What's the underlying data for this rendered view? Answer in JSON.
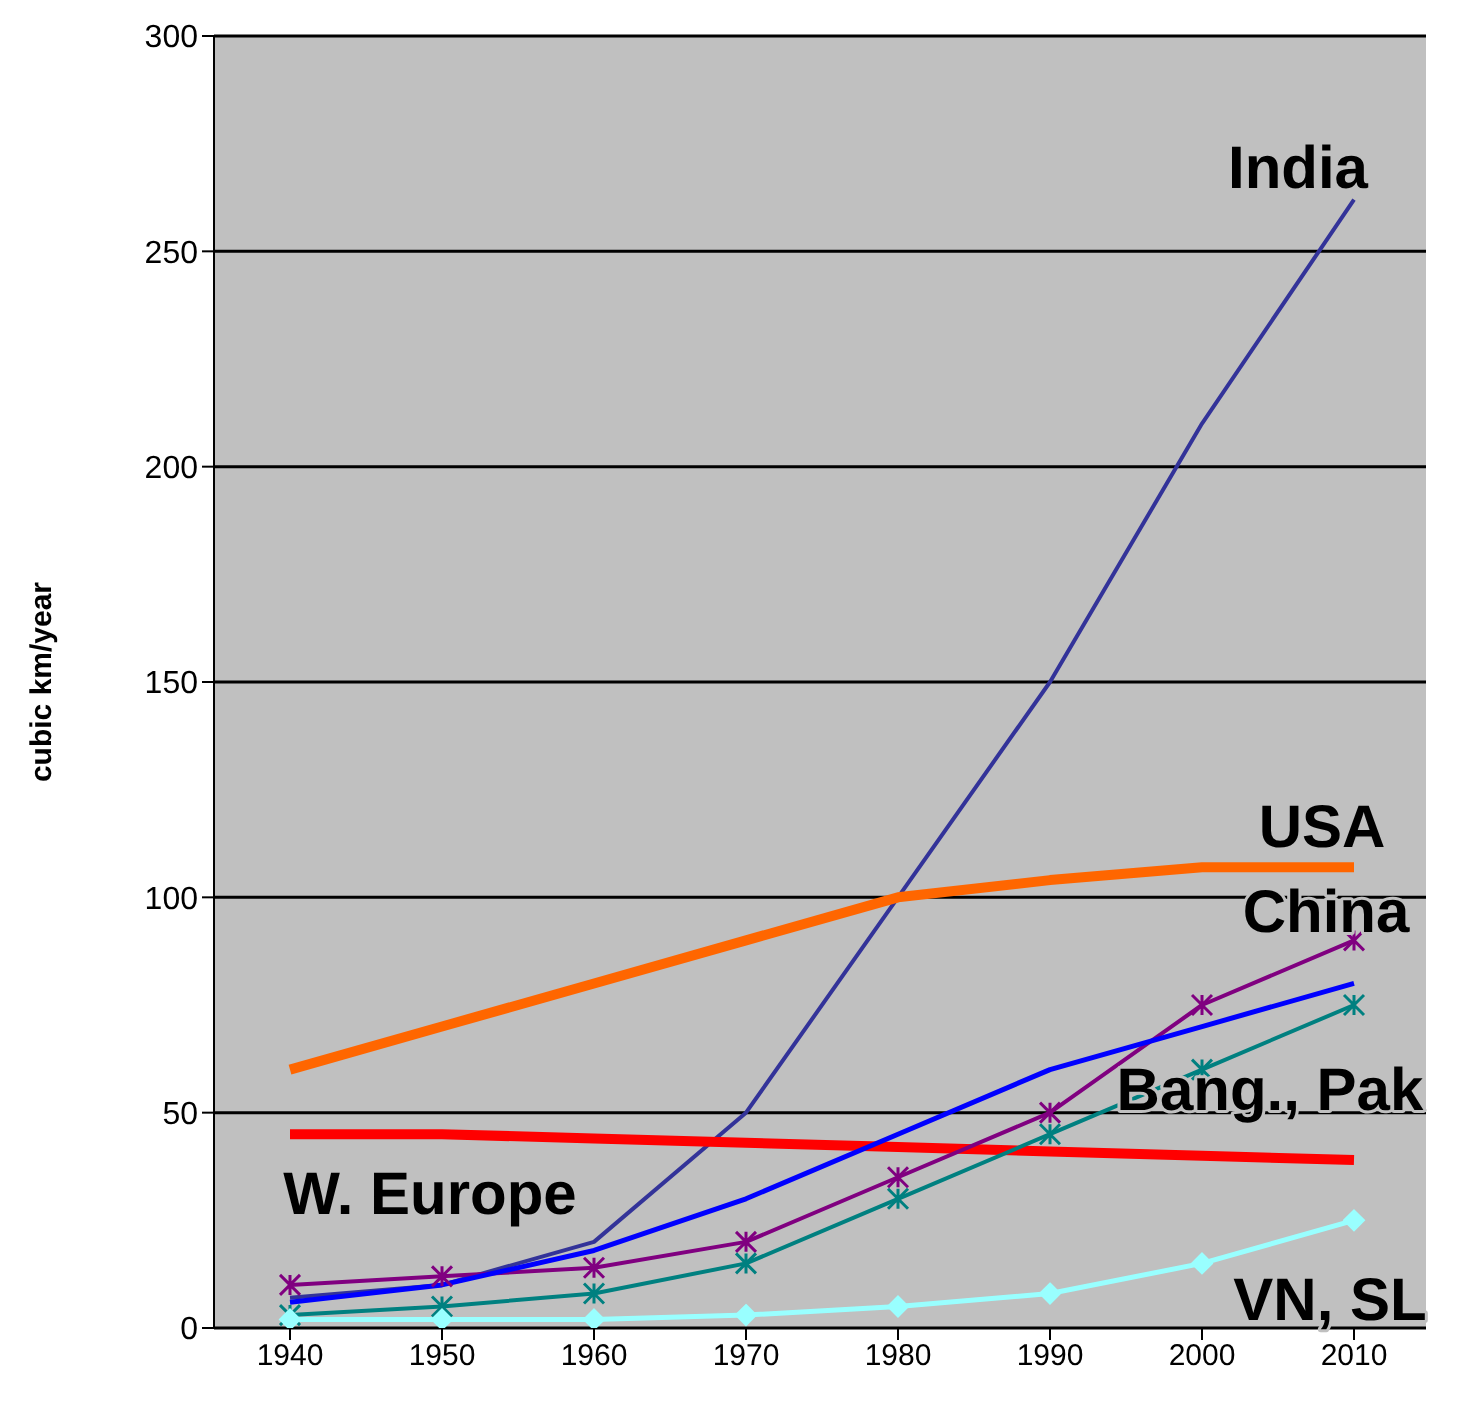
{
  "chart_data": {
    "type": "line",
    "ylabel": "cubic km/year",
    "categories": [
      "1940",
      "1950",
      "1960",
      "1970",
      "1980",
      "1990",
      "2000",
      "2010"
    ],
    "ylim": [
      0,
      300
    ],
    "yticks": [
      0,
      50,
      100,
      150,
      200,
      250,
      300
    ],
    "grid": "y",
    "legend": false,
    "series": [
      {
        "name": "India",
        "color": "#333399",
        "values": [
          7,
          10,
          20,
          50,
          100,
          150,
          210,
          262
        ]
      },
      {
        "name": "USA",
        "color": "#ff6600",
        "values": [
          60,
          70,
          80,
          90,
          100,
          104,
          107,
          107
        ]
      },
      {
        "name": "W. Europe",
        "color": "#ff0000",
        "values": [
          45,
          45,
          44,
          43,
          42,
          41,
          40,
          39
        ]
      },
      {
        "name": "China",
        "color": "#800080",
        "marker": "cross",
        "values": [
          10,
          12,
          14,
          20,
          35,
          50,
          75,
          90
        ]
      },
      {
        "color": "#0000ff",
        "values": [
          6,
          10,
          18,
          30,
          45,
          60,
          70,
          80
        ]
      },
      {
        "name": "Bang., Pak",
        "color": "#008080",
        "marker": "cross",
        "values": [
          3,
          5,
          8,
          15,
          30,
          45,
          60,
          75
        ]
      },
      {
        "name": "VN, SL",
        "color": "#99ffff",
        "marker": "diamond",
        "values": [
          2,
          2,
          2,
          3,
          5,
          8,
          15,
          25
        ]
      }
    ]
  }
}
